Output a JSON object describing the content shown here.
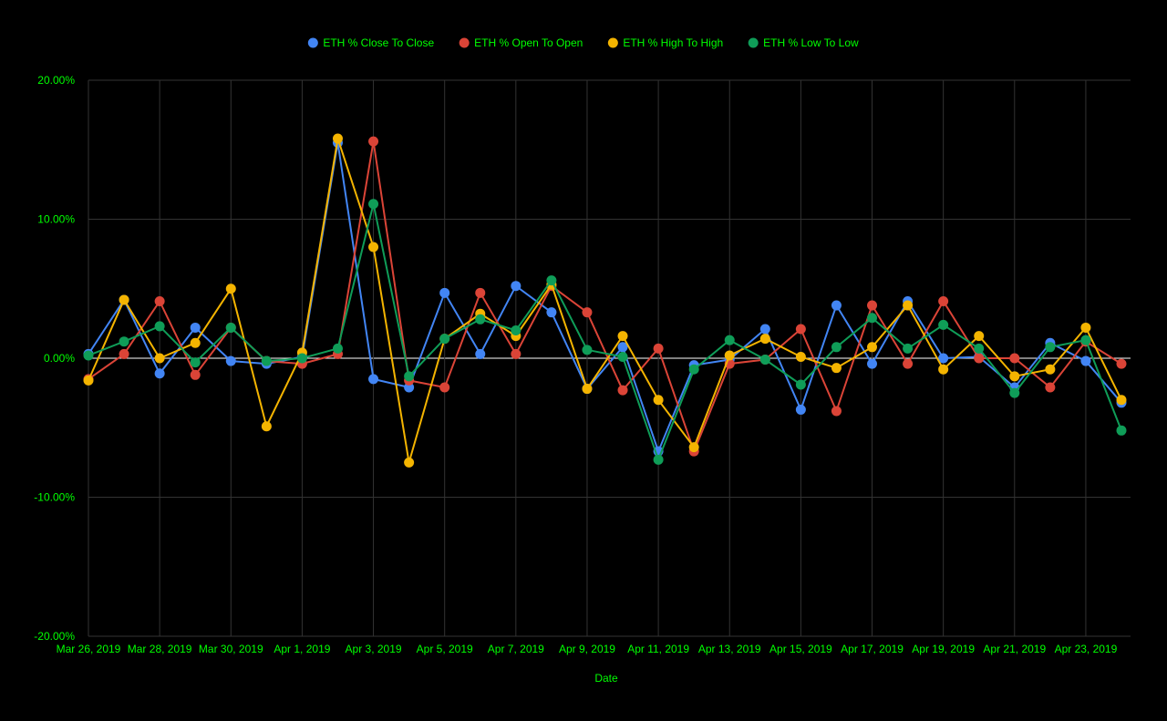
{
  "chart_data": {
    "type": "line",
    "xlabel": "Date",
    "ylabel": "",
    "ylim": [
      -0.2,
      0.2
    ],
    "y_ticks": [
      0.2,
      0.1,
      0.0,
      -0.1,
      -0.2
    ],
    "y_tick_labels": [
      "20.00%",
      "10.00%",
      "0.00%",
      "-10.00%",
      "-20.00%"
    ],
    "x": [
      "Mar 26, 2019",
      "Mar 27, 2019",
      "Mar 28, 2019",
      "Mar 29, 2019",
      "Mar 30, 2019",
      "Mar 31, 2019",
      "Apr 1, 2019",
      "Apr 2, 2019",
      "Apr 3, 2019",
      "Apr 4, 2019",
      "Apr 5, 2019",
      "Apr 6, 2019",
      "Apr 7, 2019",
      "Apr 8, 2019",
      "Apr 9, 2019",
      "Apr 10, 2019",
      "Apr 11, 2019",
      "Apr 12, 2019",
      "Apr 13, 2019",
      "Apr 14, 2019",
      "Apr 15, 2019",
      "Apr 16, 2019",
      "Apr 17, 2019",
      "Apr 18, 2019",
      "Apr 19, 2019",
      "Apr 20, 2019",
      "Apr 21, 2019",
      "Apr 22, 2019",
      "Apr 23, 2019",
      "Apr 24, 2019"
    ],
    "x_tick_labels": [
      "Mar 26, 2019",
      "Mar 28, 2019",
      "Mar 30, 2019",
      "Apr 1, 2019",
      "Apr 3, 2019",
      "Apr 5, 2019",
      "Apr 7, 2019",
      "Apr 9, 2019",
      "Apr 11, 2019",
      "Apr 13, 2019",
      "Apr 15, 2019",
      "Apr 17, 2019",
      "Apr 19, 2019",
      "Apr 21, 2019",
      "Apr 23, 2019"
    ],
    "x_tick_index": [
      0,
      2,
      4,
      6,
      8,
      10,
      12,
      14,
      16,
      18,
      20,
      22,
      24,
      26,
      28
    ],
    "grid": true,
    "legend_position": "top",
    "colors": {
      "background": "#000000",
      "text": "#00ff00",
      "grid": "#333333",
      "zero_line": "#ffffff"
    },
    "series": [
      {
        "name": "ETH % Close To Close",
        "color": "#4285f4",
        "values": [
          0.003,
          0.042,
          -0.011,
          0.022,
          -0.002,
          -0.004,
          0.001,
          0.155,
          -0.015,
          -0.021,
          0.047,
          0.003,
          0.052,
          0.033,
          -0.022,
          0.008,
          -0.067,
          -0.005,
          -0.001,
          0.021,
          -0.037,
          0.038,
          -0.004,
          0.041,
          0.0,
          0.001,
          -0.021,
          0.011,
          -0.002,
          -0.032
        ]
      },
      {
        "name": "ETH % Open To Open",
        "color": "#db4437",
        "values": [
          -0.015,
          0.003,
          0.041,
          -0.012,
          0.022,
          -0.002,
          -0.004,
          0.003,
          0.156,
          -0.016,
          -0.021,
          0.047,
          0.003,
          0.052,
          0.033,
          -0.023,
          0.007,
          -0.067,
          -0.004,
          -0.001,
          0.021,
          -0.038,
          0.038,
          -0.004,
          0.041,
          0.0,
          0.0,
          -0.021,
          0.012,
          -0.004
        ]
      },
      {
        "name": "ETH % High To High",
        "color": "#f4b400",
        "values": [
          -0.016,
          0.042,
          0.0,
          0.011,
          0.05,
          -0.049,
          0.004,
          0.158,
          0.08,
          -0.075,
          0.014,
          0.032,
          0.016,
          0.053,
          -0.022,
          0.016,
          -0.03,
          -0.064,
          0.002,
          0.014,
          0.001,
          -0.007,
          0.008,
          0.038,
          -0.008,
          0.016,
          -0.013,
          -0.008,
          0.022,
          -0.03
        ]
      },
      {
        "name": "ETH % Low To Low",
        "color": "#0f9d58",
        "values": [
          0.002,
          0.012,
          0.023,
          -0.003,
          0.022,
          -0.002,
          0.0,
          0.007,
          0.111,
          -0.013,
          0.014,
          0.028,
          0.02,
          0.056,
          0.006,
          0.001,
          -0.073,
          -0.008,
          0.013,
          -0.001,
          -0.019,
          0.008,
          0.029,
          0.007,
          0.024,
          0.007,
          -0.025,
          0.008,
          0.013,
          -0.052
        ]
      }
    ]
  }
}
